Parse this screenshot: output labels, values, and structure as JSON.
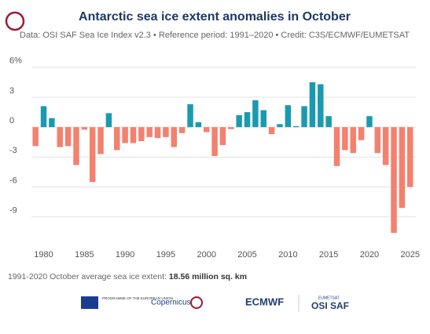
{
  "chart_data": {
    "type": "bar",
    "title": "Antarctic sea ice extent anomalies in October",
    "subtitle": "Data: OSI SAF Sea Ice Index v2.3 • Reference period: 1991–2020 • Credit: C3S/ECMWF/EUMETSAT",
    "x": [
      1979,
      1980,
      1981,
      1982,
      1983,
      1984,
      1985,
      1986,
      1987,
      1988,
      1989,
      1990,
      1991,
      1992,
      1993,
      1994,
      1995,
      1996,
      1997,
      1998,
      1999,
      2000,
      2001,
      2002,
      2003,
      2004,
      2005,
      2006,
      2007,
      2008,
      2009,
      2010,
      2011,
      2012,
      2013,
      2014,
      2015,
      2016,
      2017,
      2018,
      2019,
      2020,
      2021,
      2022,
      2023,
      2024,
      2025
    ],
    "values": [
      -1.9,
      2.1,
      0.9,
      -2.0,
      -1.9,
      -3.8,
      -0.25,
      -5.5,
      -2.7,
      1.4,
      -2.3,
      -1.6,
      -1.6,
      -1.4,
      -1.0,
      -1.1,
      -1.0,
      -2.0,
      -0.6,
      2.3,
      0.5,
      -0.5,
      -2.9,
      -1.8,
      -0.2,
      1.2,
      1.5,
      2.7,
      1.7,
      -0.7,
      0.3,
      2.2,
      0.1,
      2.1,
      4.5,
      4.3,
      1.1,
      -3.9,
      -2.3,
      -2.6,
      -1.3,
      1.1,
      -2.6,
      -3.8,
      -10.6,
      -8.1,
      -6.0
    ],
    "positive_color": "#1a9aaf",
    "negative_color": "#f4806e",
    "xlim": [
      1978.5,
      2025.7
    ],
    "xticks": [
      1980,
      1985,
      1990,
      1995,
      2000,
      2005,
      2010,
      2015,
      2020,
      2025
    ],
    "ylim": [
      -11.7,
      6.3
    ],
    "yticks": [
      {
        "value": 6,
        "label": "6%"
      },
      3,
      0,
      -3,
      -6,
      -9
    ],
    "grid": true,
    "footnote": "1991-2020 October average sea ice extent: ",
    "footnote_value": "18.56 million sq. km",
    "logos": [
      "PROGRAMME OF THE EUROPEAN UNION",
      "Copernicus",
      "ECMWF",
      "EUMETSAT",
      "OSI SAF"
    ]
  }
}
